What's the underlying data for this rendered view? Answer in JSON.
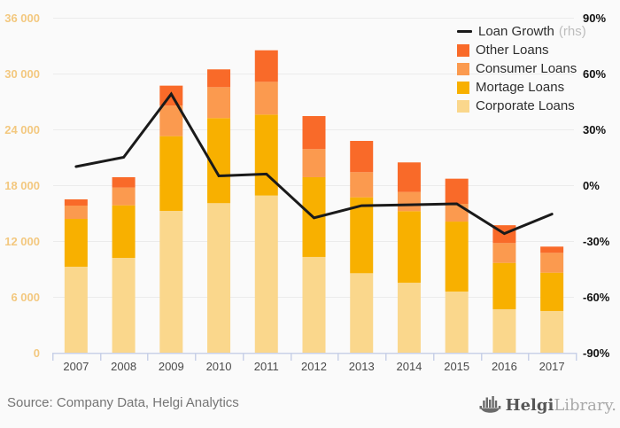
{
  "chart_data": {
    "type": "bar",
    "subtype": "stacked-bars-with-line-overlay",
    "categories": [
      "2007",
      "2008",
      "2009",
      "2010",
      "2011",
      "2012",
      "2013",
      "2014",
      "2015",
      "2016",
      "2017"
    ],
    "series": [
      {
        "name": "Corporate Loans",
        "color": "#FAD78C",
        "values": [
          9240,
          10190,
          15240,
          16070,
          16890,
          10290,
          8540,
          7520,
          6570,
          4670,
          4480
        ]
      },
      {
        "name": "Mortage Loans",
        "color": "#F8B000",
        "values": [
          5140,
          5650,
          8030,
          9140,
          8700,
          8570,
          8160,
          7690,
          7520,
          4980,
          4120
        ]
      },
      {
        "name": "Consumer Loans",
        "color": "#FB9A4F",
        "values": [
          1430,
          1910,
          3280,
          3330,
          3520,
          3020,
          2700,
          2060,
          1910,
          2130,
          2130
        ]
      },
      {
        "name": "Other Loans",
        "color": "#F96A29",
        "values": [
          670,
          1110,
          2150,
          1910,
          3390,
          3550,
          3360,
          3180,
          2700,
          1920,
          670
        ]
      }
    ],
    "line_series": {
      "name": "Loan Growth (rhs)",
      "color": "#1a1a1a",
      "values": [
        10,
        15,
        49,
        5,
        6,
        -17.5,
        -11,
        -10.5,
        -10,
        -26,
        -15.5
      ]
    },
    "left_axis": {
      "min": 0,
      "max": 36000,
      "tick_step": 6000,
      "tick_labels": [
        "0",
        "6 000",
        "12 000",
        "18 000",
        "24 000",
        "30 000",
        "36 000"
      ],
      "label_color": "#F3C87F"
    },
    "right_axis": {
      "min": -90,
      "max": 90,
      "tick_step": 30,
      "tick_labels": [
        "-90%",
        "-60%",
        "-30%",
        "0%",
        "30%",
        "60%",
        "90%"
      ],
      "label_color": "#111111"
    },
    "x_axis": {
      "label_color": "#4a4a4a",
      "line_color": "#c9d1e8"
    },
    "grid": {
      "show": true,
      "color": "#ebebeb"
    },
    "legend_position": "top-right",
    "legend": [
      {
        "label": "Loan Growth",
        "suffix": "(rhs)",
        "type": "line",
        "color": "#1a1a1a"
      },
      {
        "label": "Other Loans",
        "type": "box",
        "color": "#F96A29"
      },
      {
        "label": "Consumer Loans",
        "type": "box",
        "color": "#FB9A4F"
      },
      {
        "label": "Mortage Loans",
        "type": "box",
        "color": "#F8B000"
      },
      {
        "label": "Corporate Loans",
        "type": "box",
        "color": "#FAD78C"
      }
    ]
  },
  "footer": {
    "source": "Source: Company Data, Helgi Analytics",
    "logo_helgi": "Helgi",
    "logo_library": "Library."
  }
}
